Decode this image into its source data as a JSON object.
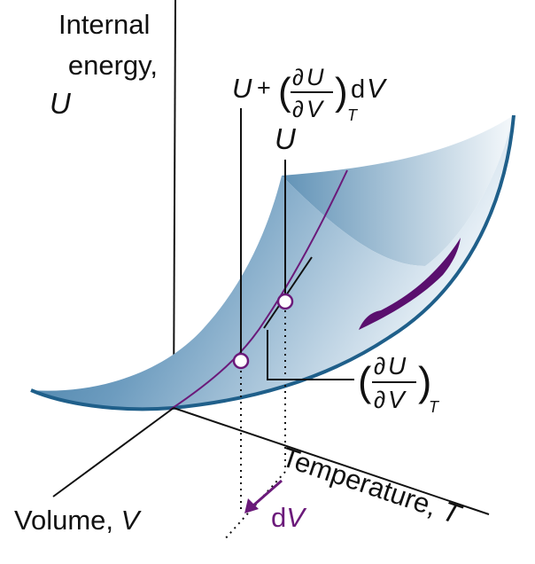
{
  "axes": {
    "internal_energy": {
      "line1": "Internal",
      "line2": "energy,",
      "symbol": "U"
    },
    "temperature": {
      "text": "Temperature, ",
      "symbol": "T"
    },
    "volume": {
      "text": "Volume, ",
      "symbol": "V"
    }
  },
  "labels": {
    "u_plus": {
      "u": "U",
      "plus": "+",
      "partial1": "∂",
      "u_num": "U",
      "partial2": "∂",
      "v_den": "V",
      "subscript": "T",
      "d": "d",
      "v": "V"
    },
    "u_point": {
      "symbol": "U"
    },
    "derivative": {
      "partial1": "∂",
      "u_num": "U",
      "partial2": "∂",
      "v_den": "V",
      "subscript": "T"
    },
    "dv": {
      "d": "d",
      "v": "V"
    }
  },
  "colors": {
    "surface_dark": "#2e6f99",
    "surface_light": "#e8f1f7",
    "surface_edge": "#1f5f8a",
    "curve": "#6b1a7a",
    "purple_fill": "#5a0f6e",
    "line": "#111111"
  }
}
